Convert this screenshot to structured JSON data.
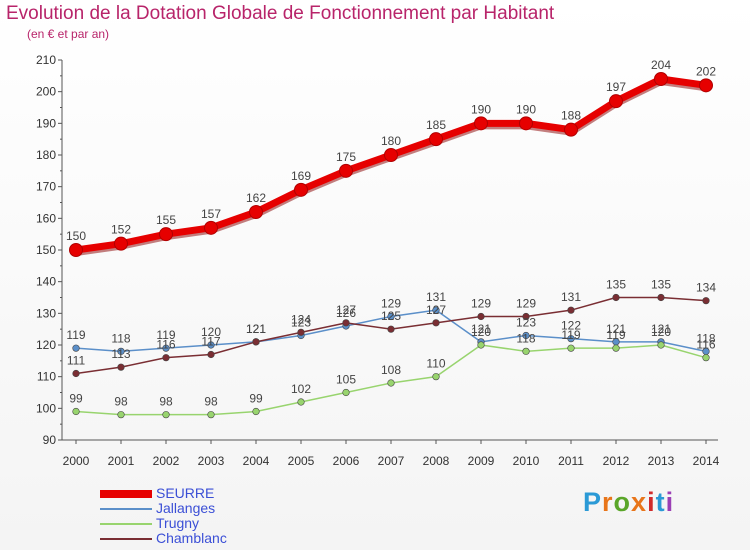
{
  "chart_data": {
    "type": "line",
    "title": "Evolution de la Dotation Globale de Fonctionnement par Habitant",
    "subtitle": "(en € et par an)",
    "xlabel": "",
    "ylabel": "",
    "x": [
      "2000",
      "2001",
      "2002",
      "2003",
      "2004",
      "2005",
      "2006",
      "2007",
      "2008",
      "2009",
      "2010",
      "2011",
      "2012",
      "2013",
      "2014"
    ],
    "ylim": [
      90,
      210
    ],
    "yticks": [
      90,
      100,
      110,
      120,
      130,
      140,
      150,
      160,
      170,
      180,
      190,
      200,
      210
    ],
    "grid": false,
    "legend_position": "bottom-left",
    "series": [
      {
        "name": "SEURRE",
        "color": "#e60000",
        "values": [
          150,
          152,
          155,
          157,
          162,
          169,
          175,
          180,
          185,
          190,
          190,
          188,
          197,
          204,
          202
        ]
      },
      {
        "name": "Jallanges",
        "color": "#5b8fc9",
        "values": [
          119,
          118,
          119,
          120,
          121,
          123,
          126,
          129,
          131,
          121,
          123,
          122,
          121,
          121,
          118
        ]
      },
      {
        "name": "Trugny",
        "color": "#98d46e",
        "values": [
          99,
          98,
          98,
          98,
          99,
          102,
          105,
          108,
          110,
          120,
          118,
          119,
          119,
          120,
          116
        ]
      },
      {
        "name": "Chamblanc",
        "color": "#7a2e33",
        "values": [
          111,
          113,
          116,
          117,
          121,
          124,
          127,
          125,
          127,
          129,
          129,
          131,
          135,
          135,
          134
        ]
      }
    ]
  },
  "brand": {
    "letters": [
      "P",
      "r",
      "o",
      "x",
      "i",
      "t",
      "i"
    ],
    "colors": [
      "#2b9ad6",
      "#e8751a",
      "#5aa629",
      "#e8751a",
      "#d12b2b",
      "#2b9ad6",
      "#9b3fb5"
    ]
  }
}
